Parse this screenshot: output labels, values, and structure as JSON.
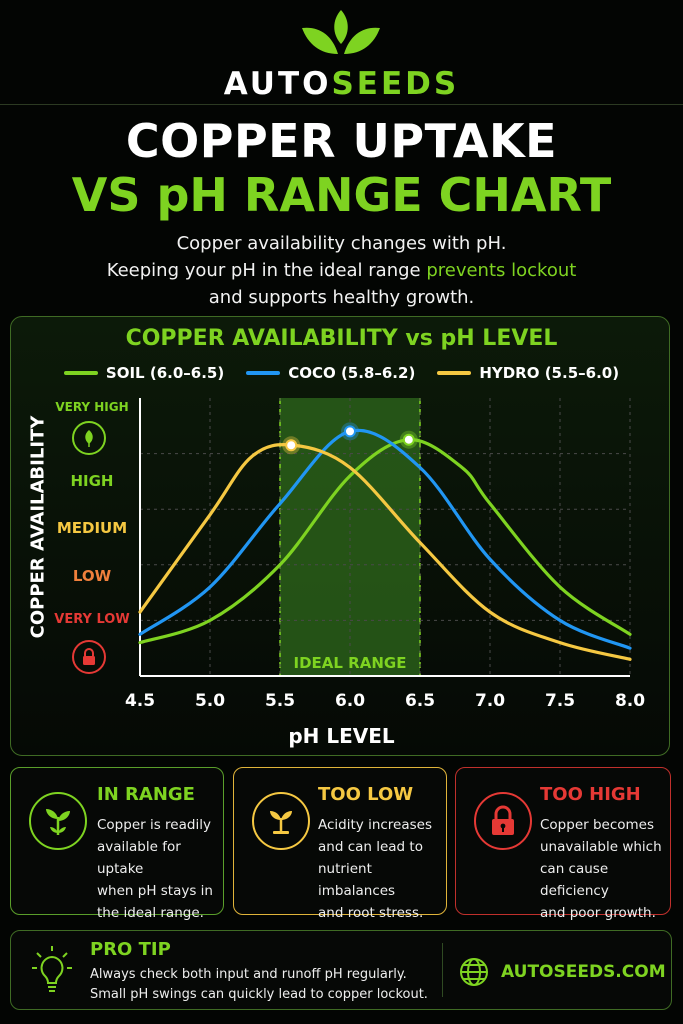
{
  "brand": {
    "part1": "AUTO",
    "part2": "SEEDS"
  },
  "title": {
    "line1": "COPPER UPTAKE",
    "line2": "VS pH RANGE CHART"
  },
  "subtitle": {
    "line1": "Copper availability changes with pH.",
    "line2_pre": "Keeping your pH in the ideal range ",
    "line2_hl": "prevents lockout",
    "line3": "and supports healthy growth."
  },
  "colors": {
    "green": "#7ed321",
    "blue": "#2196f3",
    "yellow": "#f5c842",
    "red": "#e53935",
    "orange": "#f0803c"
  },
  "chart_data": {
    "type": "line",
    "title": "COPPER AVAILABILITY vs pH LEVEL",
    "xlabel": "pH LEVEL",
    "ylabel": "COPPER AVAILABILITY",
    "xlim": [
      4.5,
      8.0
    ],
    "ylim": [
      0,
      100
    ],
    "x_ticks": [
      "4.5",
      "5.0",
      "5.5",
      "6.0",
      "6.5",
      "7.0",
      "7.5",
      "8.0"
    ],
    "y_levels": [
      "VERY HIGH",
      "HIGH",
      "MEDIUM",
      "LOW",
      "VERY LOW"
    ],
    "grid": true,
    "legend_position": "top",
    "highlight_band": {
      "label": "IDEAL RANGE",
      "x_start": 5.5,
      "x_end": 6.5
    },
    "series": [
      {
        "name": "SOIL (6.0–6.5)",
        "color": "#7ed321",
        "points": [
          [
            4.5,
            12
          ],
          [
            5.0,
            20
          ],
          [
            5.5,
            40
          ],
          [
            6.0,
            72
          ],
          [
            6.42,
            85
          ],
          [
            6.8,
            75
          ],
          [
            7.0,
            62
          ],
          [
            7.5,
            32
          ],
          [
            8.0,
            15
          ]
        ],
        "peak": [
          6.42,
          85
        ]
      },
      {
        "name": "COCO (5.8–6.2)",
        "color": "#2196f3",
        "points": [
          [
            4.5,
            15
          ],
          [
            5.0,
            32
          ],
          [
            5.5,
            62
          ],
          [
            6.0,
            88
          ],
          [
            6.5,
            75
          ],
          [
            7.0,
            42
          ],
          [
            7.5,
            20
          ],
          [
            8.0,
            10
          ]
        ],
        "peak": [
          6.0,
          88
        ]
      },
      {
        "name": "HYDRO (5.5–6.0)",
        "color": "#f5c842",
        "points": [
          [
            4.5,
            23
          ],
          [
            5.0,
            58
          ],
          [
            5.3,
            79
          ],
          [
            5.6,
            83
          ],
          [
            6.0,
            75
          ],
          [
            6.5,
            48
          ],
          [
            7.0,
            23
          ],
          [
            7.5,
            12
          ],
          [
            8.0,
            6
          ]
        ],
        "peak": [
          5.58,
          83
        ]
      }
    ]
  },
  "cards": [
    {
      "title": "IN RANGE",
      "lines": [
        "Copper is readily",
        "available for uptake",
        "when pH stays in",
        "the ideal range."
      ]
    },
    {
      "title": "TOO LOW",
      "lines": [
        "Acidity increases",
        "and can lead to",
        "nutrient imbalances",
        "and root stress."
      ]
    },
    {
      "title": "TOO HIGH",
      "lines": [
        "Copper becomes",
        "unavailable which",
        "can cause deficiency",
        "and poor growth."
      ]
    }
  ],
  "tip": {
    "title": "PRO TIP",
    "line1": "Always check both input and runoff pH regularly.",
    "line2": "Small pH swings can quickly lead to copper lockout.",
    "site": "AUTOSEEDS.COM"
  },
  "icons": {
    "logo": "leaf-logo-icon",
    "leaf": "leaf-icon",
    "lock": "lock-icon",
    "sprout": "sprout-icon",
    "bulb": "lightbulb-icon",
    "globe": "globe-icon"
  }
}
